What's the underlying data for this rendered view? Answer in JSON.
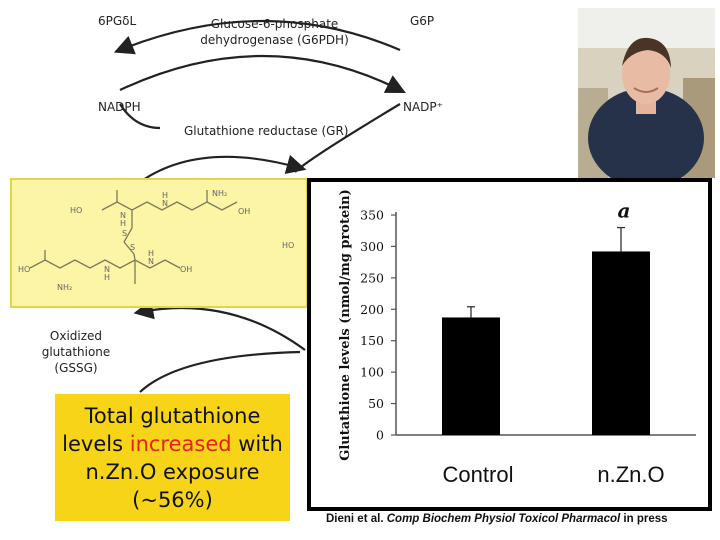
{
  "pathway": {
    "top_left": "6PGδL",
    "enzyme_g6pdh": "Glucose-6-phosphate dehydrogenase (G6PDH)",
    "top_right": "G6P",
    "nadph": "NADPH",
    "nadp": "NADP⁺",
    "enzyme_gr": "Glutathione reductase (GR)",
    "gssg_label": "Oxidized glutathione (GSSG)"
  },
  "callout": {
    "line_pre": "Total glutathione levels ",
    "highlight": "increased",
    "line_post": " with n.Zn.O exposure (~56%)"
  },
  "citation": {
    "authors": "Dieni et al.",
    "journal": "Comp Biochem Physiol Toxicol Pharmacol",
    "status": "in press"
  },
  "colors": {
    "callout_bg": "#f7d417",
    "highlight": "#e2231a",
    "gssg_box": "#fdf5a6",
    "bar": "#000000"
  },
  "chart_data": {
    "type": "bar",
    "categories": [
      "Control",
      "n.Zn.O"
    ],
    "values": [
      187,
      292
    ],
    "errors": [
      17,
      38
    ],
    "annotations": [
      "",
      "a"
    ],
    "ylabel": "Glutathione levels (nmol/mg protein)",
    "yticks": [
      0,
      50,
      100,
      150,
      200,
      250,
      300,
      350
    ],
    "ylim": [
      0,
      350
    ],
    "grid": false
  }
}
